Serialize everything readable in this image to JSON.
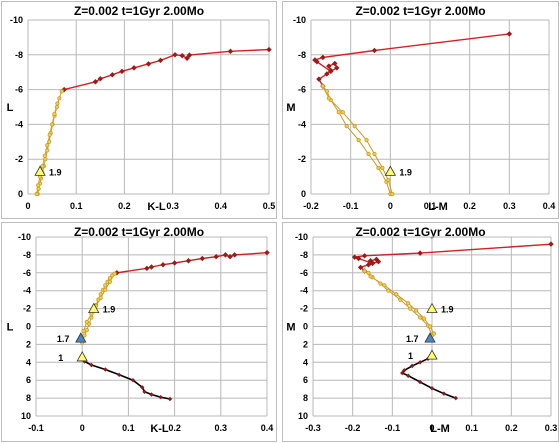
{
  "colors": {
    "agb_line": "#d62020",
    "agb_marker": "#9b1b1b",
    "gap_line": "#5aa02c",
    "rgb_line": "#c99a22",
    "rgb_marker": "#f2d04a",
    "ms_line": "#000000",
    "ms_marker": "#8b1a1a",
    "tri_yellow": "#ffff66",
    "tri_blue": "#4a86c8",
    "grid": "#b8b8b8"
  },
  "chart_data": [
    {
      "id": "top-left",
      "type": "line",
      "title": "Z=0.002  t=1Gyr  2.00Mo",
      "xlabel": "K-L",
      "ylabel": "L",
      "xlim": [
        0,
        0.5
      ],
      "ylim": [
        0,
        -10
      ],
      "xticks": [
        "0",
        "0.1",
        "0.2",
        "0.3",
        "0.4",
        "0.5"
      ],
      "yticks": [
        "0",
        "-2",
        "-4",
        "-6",
        "-8",
        "-10"
      ],
      "grid": true,
      "series": [
        {
          "kind": "agb",
          "x": [
            0.075,
            0.14,
            0.15,
            0.175,
            0.195,
            0.22,
            0.25,
            0.275,
            0.305,
            0.32,
            0.33,
            0.335,
            0.42,
            0.5
          ],
          "y": [
            -6.0,
            -6.45,
            -6.62,
            -6.85,
            -7.05,
            -7.25,
            -7.48,
            -7.68,
            -8.0,
            -7.95,
            -7.8,
            -7.98,
            -8.2,
            -8.3
          ]
        },
        {
          "kind": "gap",
          "x": [
            0.07,
            0.075
          ],
          "y": [
            -5.9,
            -6.0
          ]
        },
        {
          "kind": "rgb",
          "x": [
            0.02,
            0.022,
            0.025,
            0.027,
            0.03,
            0.033,
            0.036,
            0.04,
            0.044,
            0.047,
            0.051,
            0.055,
            0.06,
            0.065,
            0.07,
            0.061,
            0.055,
            0.05,
            0.045,
            0.04,
            0.035,
            0.03,
            0.025,
            0.021,
            0.018
          ],
          "y": [
            0.0,
            -0.3,
            -0.6,
            -0.9,
            -1.2,
            -1.6,
            -2.0,
            -2.5,
            -3.0,
            -3.5,
            -4.0,
            -4.5,
            -5.0,
            -5.5,
            -5.9,
            -5.2,
            -4.6,
            -4.0,
            -3.4,
            -2.8,
            -2.2,
            -1.6,
            -1.0,
            -0.5,
            0.0
          ]
        }
      ],
      "annotations": [
        {
          "label": "1.9",
          "marker": "triangle-yellow",
          "x": 0.025,
          "y": -1.3
        }
      ]
    },
    {
      "id": "top-right",
      "type": "line",
      "title": "Z=0.002  t=1Gyr  2.00Mo",
      "xlabel": "L-M",
      "ylabel": "M",
      "xlim": [
        -0.2,
        0.4
      ],
      "ylim": [
        0,
        -10
      ],
      "xticks": [
        "-0.2",
        "-0.1",
        "0",
        "0.1",
        "0.2",
        "0.3",
        "0.4"
      ],
      "yticks": [
        "0",
        "-2",
        "-4",
        "-6",
        "-8",
        "-10"
      ],
      "grid": true,
      "series": [
        {
          "kind": "agb",
          "x": [
            -0.17,
            -0.18,
            -0.16,
            -0.15,
            -0.155,
            -0.14,
            -0.135,
            -0.15,
            -0.185,
            -0.19,
            -0.17,
            -0.04,
            0.3
          ],
          "y": [
            -6.2,
            -6.6,
            -6.9,
            -7.1,
            -7.35,
            -7.5,
            -7.25,
            -7.05,
            -7.6,
            -7.7,
            -7.85,
            -8.25,
            -9.2
          ]
        },
        {
          "kind": "rgb",
          "x": [
            0.0,
            -0.01,
            -0.03,
            -0.055,
            -0.08,
            -0.11,
            -0.13,
            -0.15,
            -0.16,
            -0.17,
            -0.155,
            -0.12,
            -0.09,
            -0.06,
            -0.04,
            -0.02,
            -0.005,
            0.005
          ],
          "y": [
            0.0,
            -0.7,
            -1.5,
            -2.3,
            -3.1,
            -3.9,
            -4.7,
            -5.4,
            -5.9,
            -6.2,
            -5.5,
            -4.7,
            -3.9,
            -3.1,
            -2.3,
            -1.5,
            -0.8,
            0.0
          ]
        }
      ],
      "annotations": [
        {
          "label": "1.9",
          "marker": "triangle-yellow",
          "x": 0.0,
          "y": -1.3
        }
      ]
    },
    {
      "id": "bottom-left",
      "type": "line",
      "title": "Z=0.002  t=1Gyr  2.00Mo",
      "xlabel": "K-L",
      "ylabel": "L",
      "xlim": [
        -0.1,
        0.4
      ],
      "ylim": [
        10,
        -10
      ],
      "xticks": [
        "-0.1",
        "0",
        "0.1",
        "0.2",
        "0.3",
        "0.4"
      ],
      "yticks": [
        "10",
        "8",
        "6",
        "4",
        "2",
        "0",
        "-2",
        "-4",
        "-6",
        "-8",
        "-10"
      ],
      "grid": true,
      "series": [
        {
          "kind": "agb",
          "x": [
            0.075,
            0.14,
            0.15,
            0.175,
            0.2,
            0.23,
            0.26,
            0.29,
            0.31,
            0.32,
            0.33,
            0.4
          ],
          "y": [
            -6.0,
            -6.5,
            -6.65,
            -6.9,
            -7.1,
            -7.35,
            -7.6,
            -7.8,
            -8.0,
            -7.8,
            -8.0,
            -8.25
          ]
        },
        {
          "kind": "gap",
          "x": [
            0.07,
            0.075
          ],
          "y": [
            -5.9,
            -6.0
          ]
        },
        {
          "kind": "rgb",
          "x": [
            0.0,
            0.005,
            0.01,
            0.015,
            0.02,
            0.025,
            0.03,
            0.035,
            0.04,
            0.045,
            0.05,
            0.055,
            0.06,
            0.065,
            0.07,
            0.06,
            0.05,
            0.04,
            0.03,
            0.02,
            0.01,
            0.003
          ],
          "y": [
            1.8,
            1.0,
            0.4,
            -0.3,
            -1.0,
            -1.7,
            -2.4,
            -3.0,
            -3.6,
            -4.1,
            -4.6,
            -5.0,
            -5.4,
            -5.7,
            -5.9,
            -5.0,
            -4.1,
            -3.2,
            -2.3,
            -1.4,
            -0.5,
            0.5
          ]
        },
        {
          "kind": "ms",
          "x": [
            0.0,
            0.005,
            0.02,
            0.05,
            0.08,
            0.11,
            0.13,
            0.135,
            0.15,
            0.17,
            0.19
          ],
          "y": [
            3.5,
            3.9,
            4.3,
            4.8,
            5.4,
            6.0,
            6.8,
            7.3,
            7.6,
            7.9,
            8.1
          ]
        }
      ],
      "annotations": [
        {
          "label": "1.9",
          "marker": "triangle-yellow",
          "x": 0.025,
          "y": -2.0
        },
        {
          "label": "1.7",
          "marker": "triangle-blue",
          "x": -0.003,
          "y": 1.3
        },
        {
          "label": "1",
          "marker": "triangle-yellow",
          "x": 0.0,
          "y": 3.4
        }
      ]
    },
    {
      "id": "bottom-right",
      "type": "line",
      "title": "Z=0.002  t=1Gyr  2.00Mo",
      "xlabel": "L-M",
      "ylabel": "M",
      "xlim": [
        -0.3,
        0.3
      ],
      "ylim": [
        10,
        -10
      ],
      "xticks": [
        "-0.3",
        "-0.2",
        "-0.1",
        "0",
        "0.1",
        "0.2",
        "0.3"
      ],
      "yticks": [
        "10",
        "8",
        "6",
        "4",
        "2",
        "0",
        "-2",
        "-4",
        "-6",
        "-8",
        "-10"
      ],
      "grid": true,
      "series": [
        {
          "kind": "agb",
          "x": [
            -0.17,
            -0.18,
            -0.16,
            -0.15,
            -0.155,
            -0.14,
            -0.135,
            -0.15,
            -0.185,
            -0.195,
            -0.17,
            -0.03,
            0.3
          ],
          "y": [
            -6.2,
            -6.6,
            -6.9,
            -7.1,
            -7.35,
            -7.5,
            -7.25,
            -7.05,
            -7.6,
            -7.75,
            -7.9,
            -8.2,
            -9.2
          ]
        },
        {
          "kind": "rgb",
          "x": [
            0.0,
            -0.01,
            -0.03,
            -0.055,
            -0.08,
            -0.11,
            -0.13,
            -0.15,
            -0.16,
            -0.17,
            -0.155,
            -0.12,
            -0.09,
            -0.06,
            -0.04,
            -0.02,
            -0.005,
            0.005
          ],
          "y": [
            1.0,
            -0.1,
            -1.0,
            -2.0,
            -3.0,
            -4.0,
            -4.8,
            -5.5,
            -6.0,
            -6.2,
            -5.6,
            -4.6,
            -3.6,
            -2.6,
            -1.8,
            -0.9,
            0.0,
            0.8
          ]
        },
        {
          "kind": "ms",
          "x": [
            0.0,
            -0.01,
            -0.03,
            -0.05,
            -0.07,
            -0.075,
            -0.06,
            -0.03,
            0.0,
            0.03,
            0.06
          ],
          "y": [
            3.2,
            3.6,
            4.0,
            4.4,
            4.9,
            5.2,
            5.5,
            6.2,
            6.9,
            7.5,
            8.0
          ]
        }
      ],
      "annotations": [
        {
          "label": "1.9",
          "marker": "triangle-yellow",
          "x": 0.0,
          "y": -2.0
        },
        {
          "label": "1.7",
          "marker": "triangle-blue",
          "x": -0.005,
          "y": 1.3
        },
        {
          "label": "1",
          "marker": "triangle-yellow",
          "x": 0.0,
          "y": 3.2
        }
      ]
    }
  ]
}
